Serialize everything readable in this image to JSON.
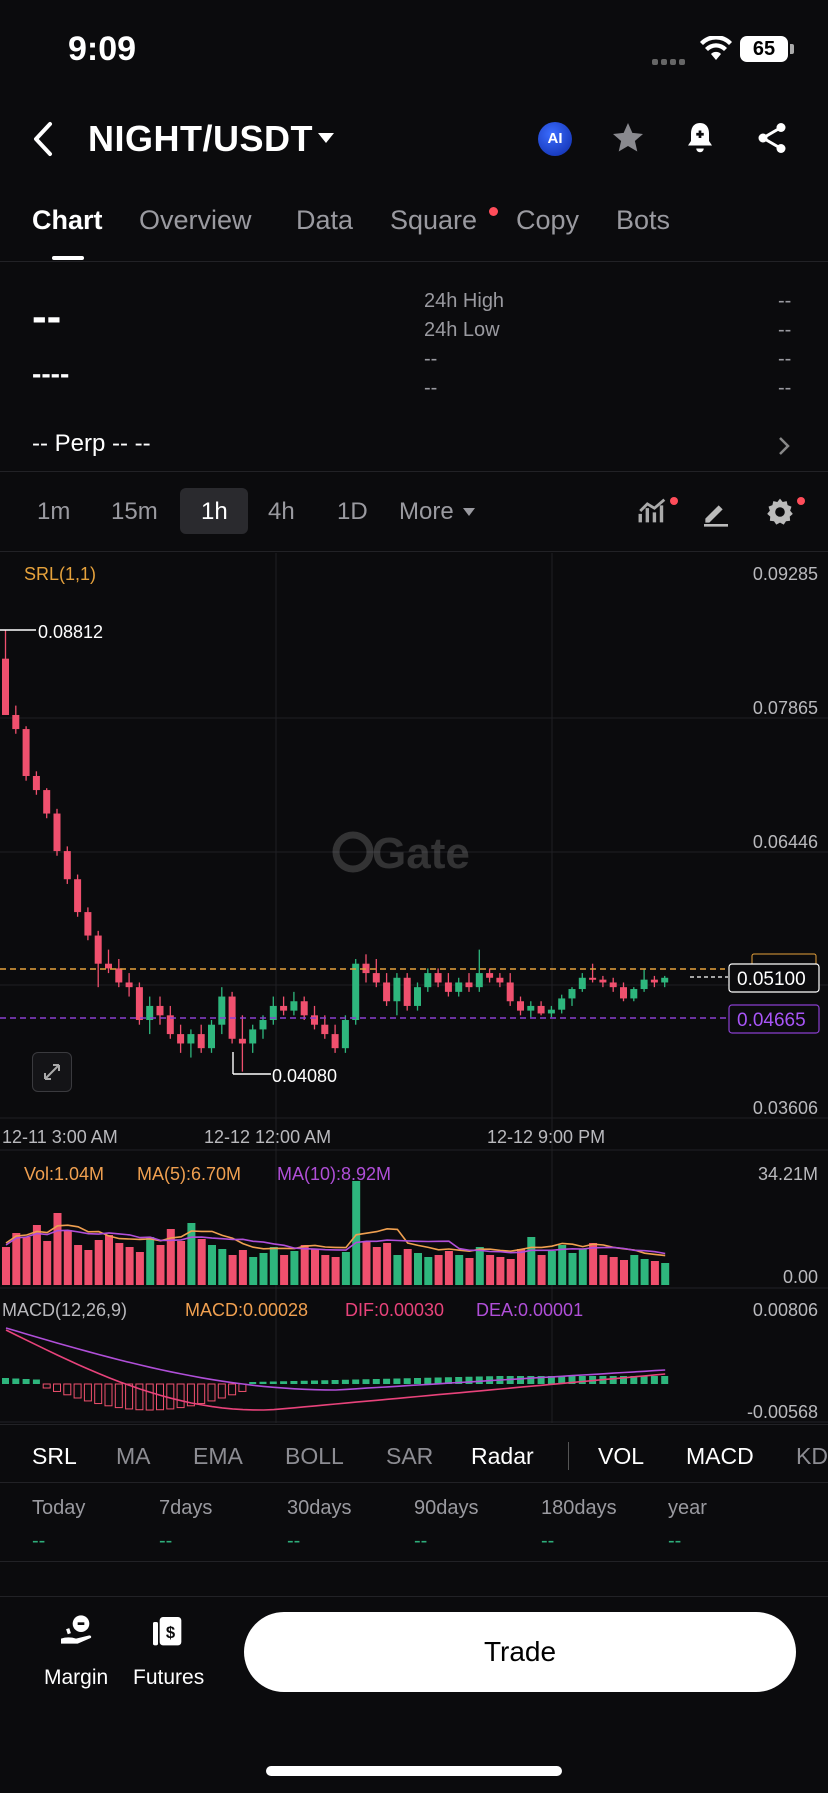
{
  "status_bar": {
    "time": "9:09",
    "battery": "65"
  },
  "header": {
    "pair": "NIGHT/USDT",
    "ai_label": "AI"
  },
  "tabs": [
    {
      "label": "Chart",
      "active": true
    },
    {
      "label": "Overview"
    },
    {
      "label": "Data"
    },
    {
      "label": "Square",
      "has_dot": true
    },
    {
      "label": "Copy"
    },
    {
      "label": "Bots"
    }
  ],
  "summary": {
    "price": "--",
    "change": "----",
    "stats": [
      {
        "label": "24h High",
        "value": "--"
      },
      {
        "label": "24h Low",
        "value": "--"
      },
      {
        "label": "--",
        "value": "--"
      },
      {
        "label": "--",
        "value": "--"
      }
    ],
    "perp_text": "-- Perp  -- --"
  },
  "intervals": [
    "1m",
    "15m",
    "1h",
    "4h",
    "1D",
    "More"
  ],
  "active_interval": "1h",
  "chart_data": {
    "type": "candlestick",
    "indicator_label": "SRL(1,1)",
    "y_ticks": [
      "0.09285",
      "0.07865",
      "0.06446",
      "0.03606"
    ],
    "price_tags": {
      "current": "0.05100",
      "srl": "0.04665"
    },
    "annotations": {
      "high": "0.08812",
      "low": "0.04080"
    },
    "x_ticks": [
      "12-11 3:00 AM",
      "12-12 12:00 AM",
      "12-12 9:00 PM"
    ],
    "watermark": "Gate",
    "volume": {
      "vol": "Vol:1.04M",
      "ma5": "MA(5):6.70M",
      "ma10": "MA(10):8.92M",
      "max": "34.21M",
      "min": "0.00"
    },
    "macd": {
      "label": "MACD(12,26,9)",
      "macd": "MACD:0.00028",
      "dif": "DIF:0.00030",
      "dea": "DEA:0.00001",
      "max": "0.00806",
      "min": "-0.00568"
    },
    "colors": {
      "up": "#2eb67d",
      "down": "#f0506e",
      "srl": "#e6a23c",
      "ma5": "#f0a050",
      "ma10": "#b04fd8",
      "dif": "#e8437b",
      "dea": "#b04fd8"
    }
  },
  "indicator_tabs": [
    "SRL",
    "MA",
    "EMA",
    "BOLL",
    "SAR",
    "Radar",
    "VOL",
    "MACD",
    "KD"
  ],
  "periods": [
    {
      "label": "Today",
      "value": "--"
    },
    {
      "label": "7days",
      "value": "--"
    },
    {
      "label": "30days",
      "value": "--"
    },
    {
      "label": "90days",
      "value": "--"
    },
    {
      "label": "180days",
      "value": "--"
    },
    {
      "label": "year",
      "value": "--"
    }
  ],
  "bottom": {
    "margin_label": "Margin",
    "futures_label": "Futures",
    "trade_label": "Trade"
  }
}
